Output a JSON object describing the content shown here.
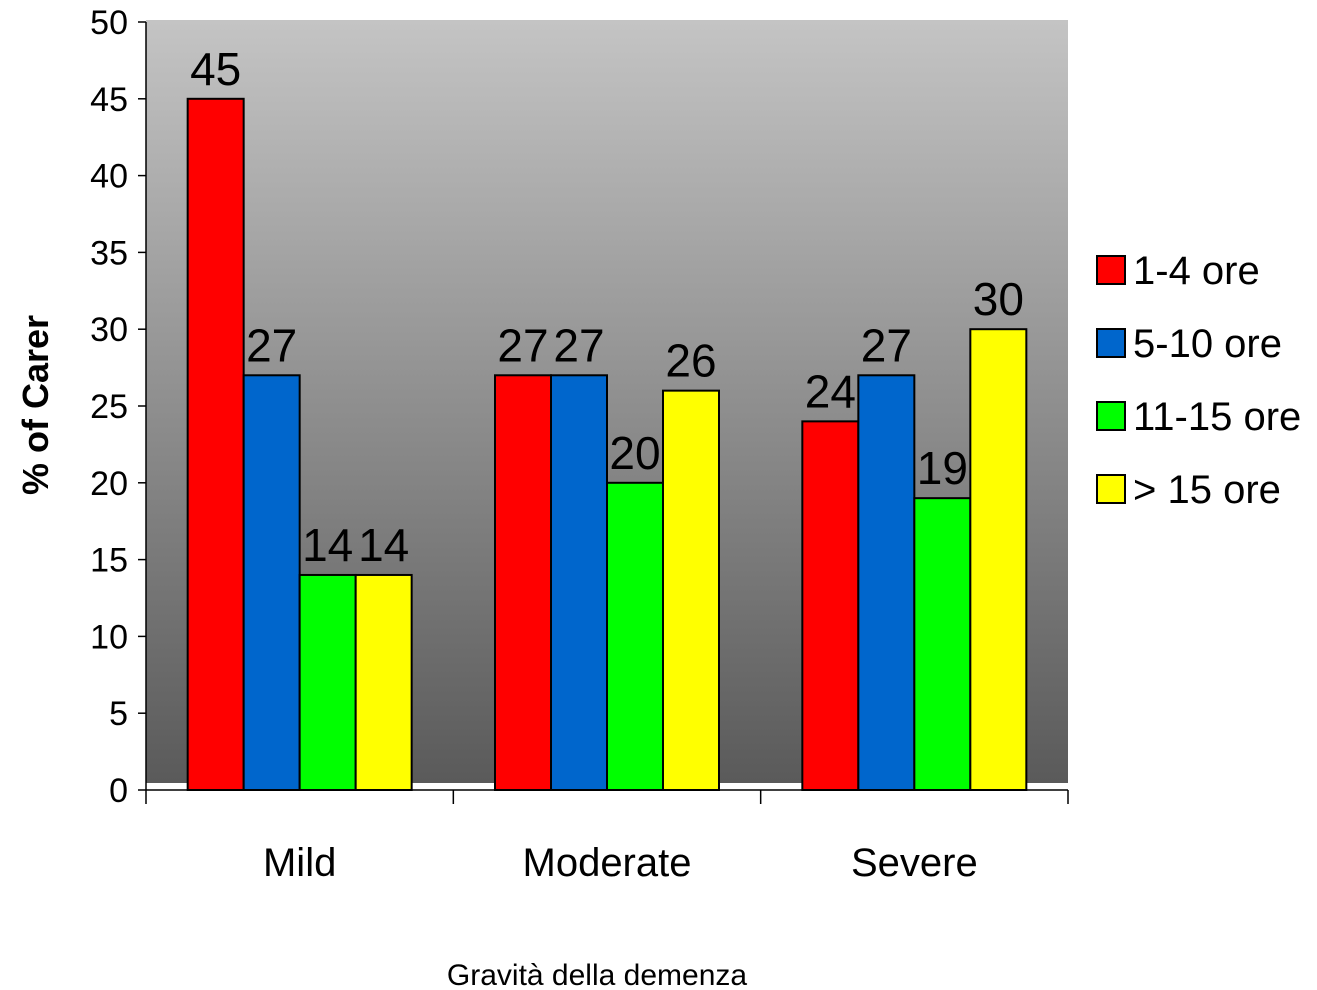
{
  "chart_data": {
    "type": "bar",
    "title": "",
    "xlabel": "Gravità della demenza",
    "ylabel": "% of Carer",
    "ylim": [
      0,
      50
    ],
    "yticks": [
      "0",
      "5",
      "10",
      "15",
      "20",
      "25",
      "30",
      "35",
      "40",
      "45",
      "50"
    ],
    "categories": [
      "Mild",
      "Moderate",
      "Severe"
    ],
    "series": [
      {
        "name": "1-4 ore",
        "color": "#ff0000",
        "values": [
          45,
          27,
          24
        ]
      },
      {
        "name": "5-10 ore",
        "color": "#0066cc",
        "values": [
          27,
          27,
          27
        ]
      },
      {
        "name": "11-15 ore",
        "color": "#00ff00",
        "values": [
          14,
          20,
          19
        ]
      },
      {
        "name": "> 15 ore",
        "color": "#ffff00",
        "values": [
          14,
          26,
          30
        ]
      }
    ],
    "legend_position": "right",
    "plot_background": "gray gradient"
  }
}
